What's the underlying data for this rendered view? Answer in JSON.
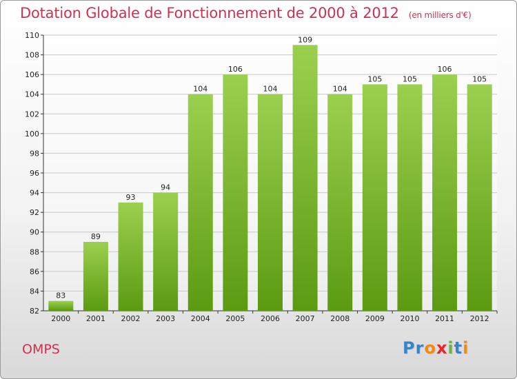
{
  "title": "Dotation Globale de Fonctionnement de 2000 à 2012",
  "unit": "(en milliers d'€)",
  "commune": "OMPS",
  "logo": {
    "text": "Proxiti",
    "colors": [
      "#3a83c6",
      "#3a83c6",
      "#f08a1c",
      "#e8262c",
      "#6db33f",
      "#3a83c6",
      "#f08a1c"
    ]
  },
  "colors": {
    "bar_top": "#9bd04f",
    "bar_bottom": "#5c9a12",
    "title": "#d1304f",
    "grid": "#c8c8c8"
  },
  "chart_data": {
    "type": "bar",
    "title": "Dotation Globale de Fonctionnement de 2000 à 2012",
    "xlabel": "",
    "ylabel": "",
    "categories": [
      "2000",
      "2001",
      "2002",
      "2003",
      "2004",
      "2005",
      "2006",
      "2007",
      "2008",
      "2009",
      "2010",
      "2011",
      "2012"
    ],
    "values": [
      83,
      89,
      93,
      94,
      104,
      106,
      104,
      109,
      104,
      105,
      105,
      106,
      105
    ],
    "ylim": [
      82,
      110
    ],
    "yticks": [
      82,
      84,
      86,
      88,
      90,
      92,
      94,
      96,
      98,
      100,
      102,
      104,
      106,
      108,
      110
    ],
    "grid": true
  }
}
